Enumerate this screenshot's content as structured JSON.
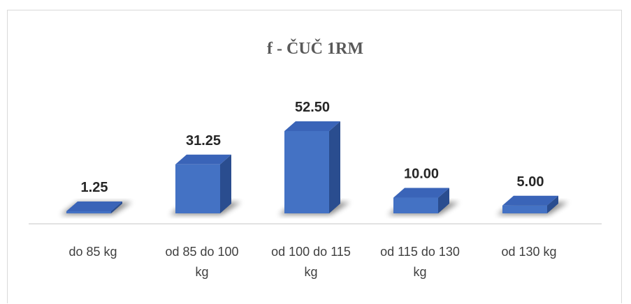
{
  "chart_data": {
    "type": "bar",
    "title": "f - ČUČ 1RM",
    "categories": [
      "do 85 kg",
      "od 85 do 100 kg",
      "od 100 do 115 kg",
      "od 115 do 130 kg",
      "od 130 kg"
    ],
    "category_lines": [
      [
        "do 85 kg"
      ],
      [
        "od 85 do 100",
        "kg"
      ],
      [
        "od 100 do 115",
        "kg"
      ],
      [
        "od 115 do 130",
        "kg"
      ],
      [
        "od 130 kg"
      ]
    ],
    "values": [
      1.25,
      31.25,
      52.5,
      10.0,
      5.0
    ],
    "data_labels": [
      "1.25",
      "31.25",
      "52.50",
      "10.00",
      "5.00"
    ],
    "ylim": [
      0,
      60
    ],
    "grid": false,
    "legend": "none",
    "style": "3d-column",
    "colors": {
      "front": "#4472c4",
      "side": "#2a4d8f",
      "top": "#3a64b8",
      "axis": "#d9d9d9",
      "title": "#595959"
    }
  }
}
